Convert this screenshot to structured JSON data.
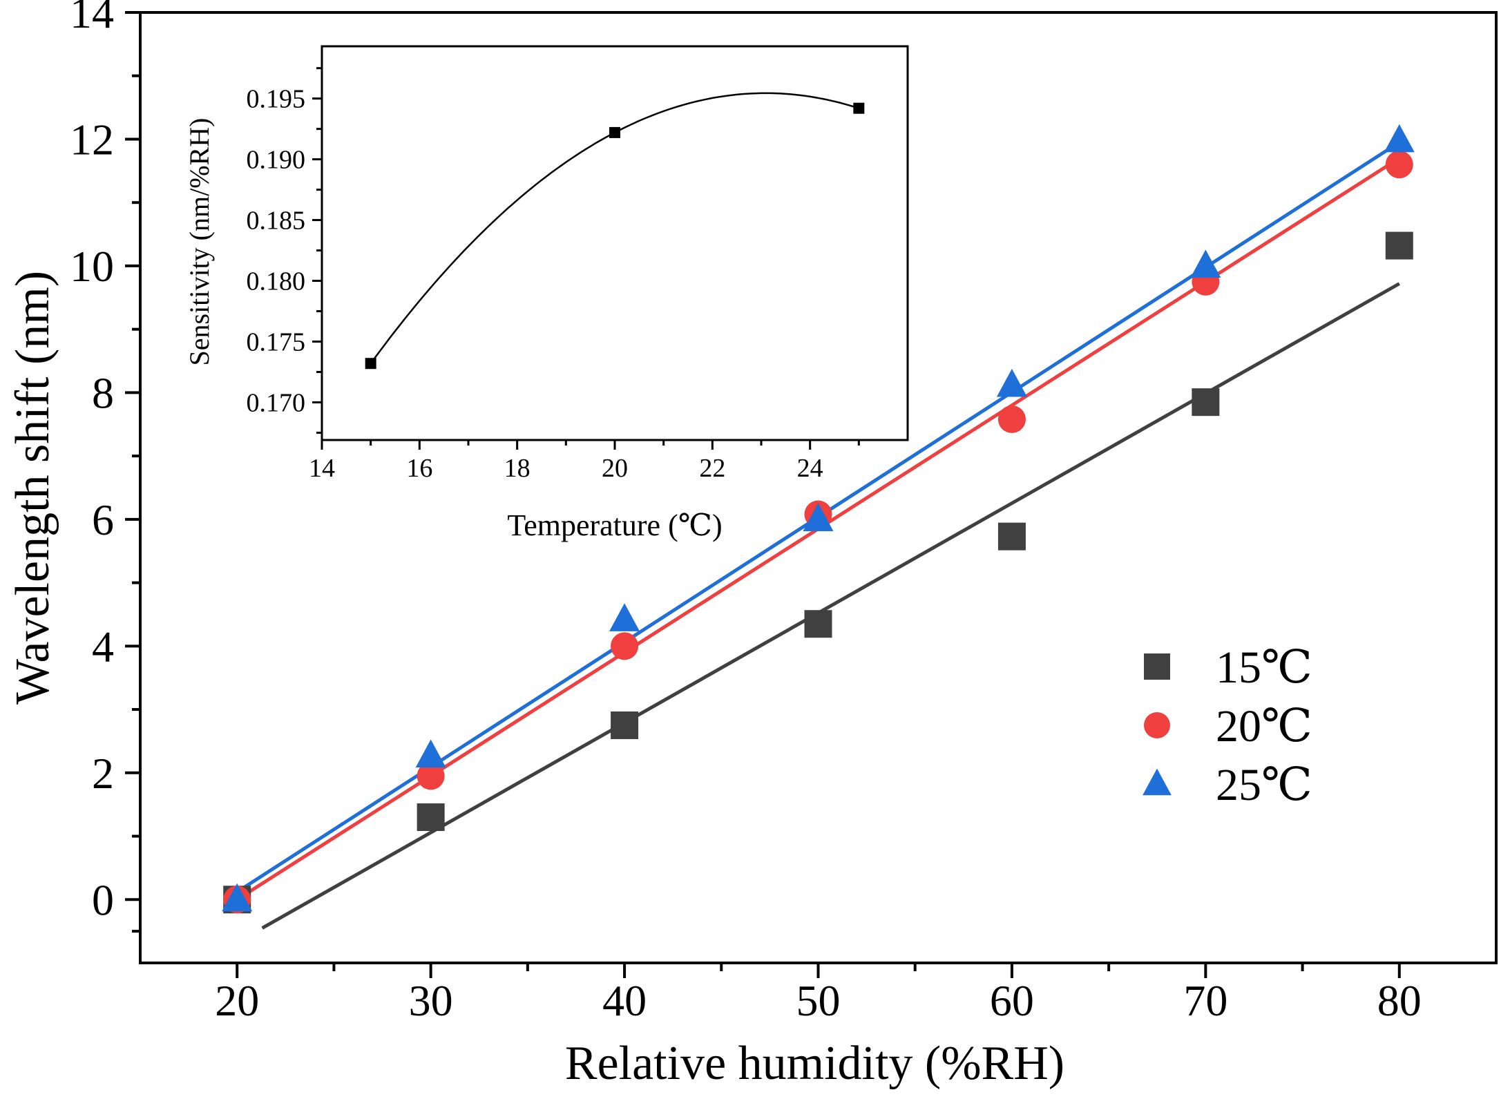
{
  "chart_data": [
    {
      "id": "main",
      "type": "scatter",
      "title": "",
      "xlabel": "Relative humidity (%RH)",
      "ylabel": "Wavelength shift (nm)",
      "xlim": [
        15,
        85
      ],
      "ylim": [
        -1,
        14
      ],
      "xticks": [
        20,
        30,
        40,
        50,
        60,
        70,
        80
      ],
      "yticks": [
        0,
        2,
        4,
        6,
        8,
        10,
        12,
        14
      ],
      "grid": false,
      "legend_position": "right",
      "series": [
        {
          "name": "15℃",
          "marker": "square",
          "color": "#404040",
          "x": [
            20,
            30,
            40,
            50,
            60,
            70,
            80
          ],
          "y": [
            0,
            1.3,
            2.75,
            4.35,
            5.73,
            7.85,
            10.32
          ],
          "fit": {
            "x0": 21.3,
            "y0": -0.45,
            "x1": 80,
            "y1": 9.72
          }
        },
        {
          "name": "20℃",
          "marker": "circle",
          "color": "#ef3f3f",
          "x": [
            20,
            30,
            40,
            50,
            60,
            70,
            80
          ],
          "y": [
            0,
            1.95,
            4.0,
            6.08,
            7.58,
            9.75,
            11.6
          ],
          "fit": {
            "x0": 20,
            "y0": 0,
            "x1": 80,
            "y1": 11.7
          }
        },
        {
          "name": "25℃",
          "marker": "triangle",
          "color": "#1f6fd8",
          "x": [
            20,
            30,
            40,
            50,
            60,
            70,
            80
          ],
          "y": [
            0,
            2.27,
            4.42,
            6.0,
            8.12,
            10.0,
            11.98
          ],
          "fit": {
            "x0": 20,
            "y0": 0.12,
            "x1": 80,
            "y1": 11.95
          }
        }
      ]
    },
    {
      "id": "inset",
      "type": "line",
      "title": "",
      "xlabel": "Temperature (℃)",
      "ylabel": "Sensitivity (nm/%RH)",
      "xlim": [
        14,
        26
      ],
      "ylim": [
        0.1669,
        0.1993
      ],
      "xticks": [
        14,
        16,
        18,
        20,
        22,
        24
      ],
      "yticks": [
        0.17,
        0.175,
        0.18,
        0.185,
        0.19,
        0.195
      ],
      "ytick_labels": [
        "0.170",
        "0.175",
        "0.180",
        "0.185",
        "0.190",
        "0.195"
      ],
      "grid": false,
      "series": [
        {
          "name": "Sensitivity",
          "marker": "square",
          "color": "#000000",
          "x": [
            15,
            20,
            25
          ],
          "y": [
            0.1732,
            0.1922,
            0.1942
          ]
        }
      ]
    }
  ]
}
